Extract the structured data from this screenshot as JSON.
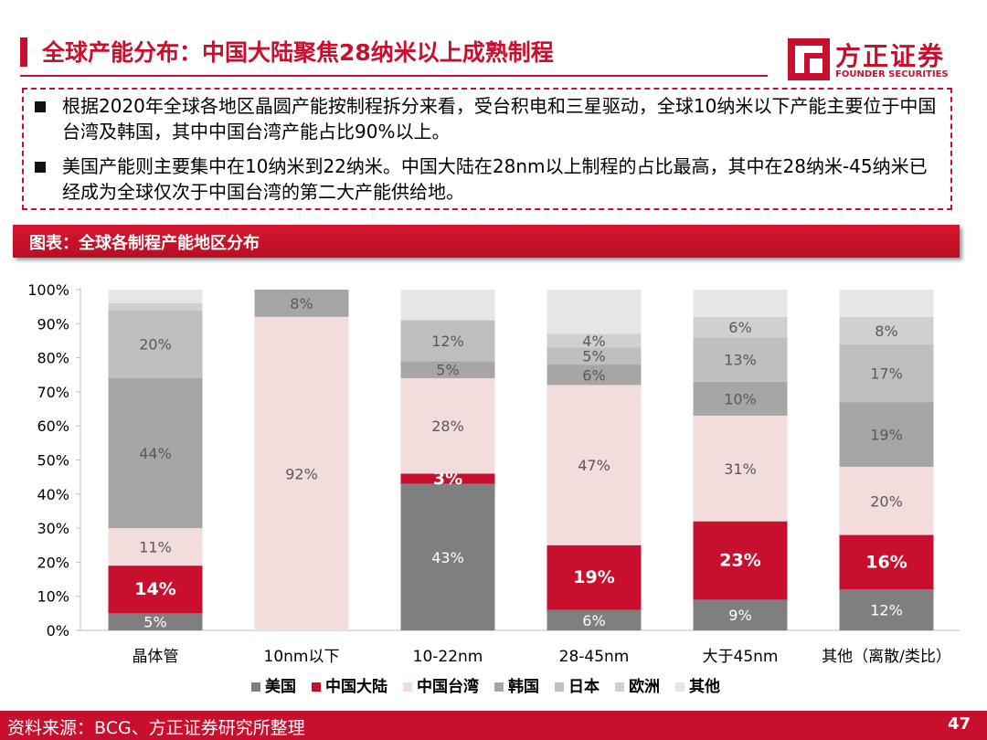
{
  "header": {
    "title": "全球产能分布：中国大陆聚焦28纳米以上成熟制程",
    "logo_name": "方正证券",
    "logo_sub": "FOUNDER SECURITIES",
    "logo_icon": "founder-logo-icon"
  },
  "bullets": [
    "根据2020年全球各地区晶圆产能按制程拆分来看，受台积电和三星驱动，全球10纳米以下产能主要位于中国台湾及韩国，其中中国台湾产能占比90%以上。",
    "美国产能则主要集中在10纳米到22纳米。中国大陆在28nm以上制程的占比最高，其中在28纳米-45纳米已经成为全球仅次于中国台湾的第二大产能供给地。"
  ],
  "chart_banner": "图表：全球各制程产能地区分布",
  "chart_data": {
    "type": "bar",
    "stacked": true,
    "title": "",
    "xlabel": "",
    "ylabel": "",
    "ylim": [
      0,
      100
    ],
    "y_ticks": [
      "0%",
      "10%",
      "20%",
      "30%",
      "40%",
      "50%",
      "60%",
      "70%",
      "80%",
      "90%",
      "100%"
    ],
    "categories": [
      "晶体管",
      "10nm以下",
      "10-22nm",
      "28-45nm",
      "大于45nm",
      "其他（离散/类比）"
    ],
    "legend_position": "bottom",
    "series": [
      {
        "name": "美国",
        "color": "#7f7f7f",
        "label_color": "#ffffff",
        "bold": false,
        "values": [
          5,
          0,
          43,
          6,
          9,
          12
        ],
        "labels": [
          "5%",
          "",
          "43%",
          "6%",
          "9%",
          "12%"
        ]
      },
      {
        "name": "中国大陆",
        "color": "#c8102e",
        "label_color": "#ffffff",
        "bold": true,
        "values": [
          14,
          0,
          3,
          19,
          23,
          16
        ],
        "labels": [
          "14%",
          "",
          "3%",
          "19%",
          "23%",
          "16%"
        ]
      },
      {
        "name": "中国台湾",
        "color": "#f3dcdc",
        "label_color": "#595959",
        "bold": false,
        "values": [
          11,
          92,
          28,
          47,
          31,
          20
        ],
        "labels": [
          "11%",
          "92%",
          "28%",
          "47%",
          "31%",
          "20%"
        ]
      },
      {
        "name": "韩国",
        "color": "#a6a6a6",
        "label_color": "#595959",
        "bold": false,
        "values": [
          44,
          8,
          5,
          6,
          10,
          19
        ],
        "labels": [
          "44%",
          "8%",
          "5%",
          "6%",
          "10%",
          "19%"
        ]
      },
      {
        "name": "日本",
        "color": "#bfbfbf",
        "label_color": "#595959",
        "bold": false,
        "values": [
          20,
          0,
          12,
          5,
          13,
          17
        ],
        "labels": [
          "20%",
          "",
          "12%",
          "5%",
          "13%",
          "17%"
        ]
      },
      {
        "name": "欧洲",
        "color": "#d0d0d0",
        "label_color": "#595959",
        "bold": false,
        "values": [
          2,
          0,
          0,
          4,
          6,
          8
        ],
        "labels": [
          "",
          "",
          "",
          "4%",
          "6%",
          "8%"
        ]
      },
      {
        "name": "其他",
        "color": "#e6e6e6",
        "label_color": "#595959",
        "bold": false,
        "values": [
          4,
          0,
          9,
          13,
          8,
          8
        ],
        "labels": [
          "",
          "",
          "",
          "",
          "",
          ""
        ]
      }
    ]
  },
  "footer": {
    "source": "资料来源：BCG、方正证券研究所整理",
    "page": "47"
  }
}
